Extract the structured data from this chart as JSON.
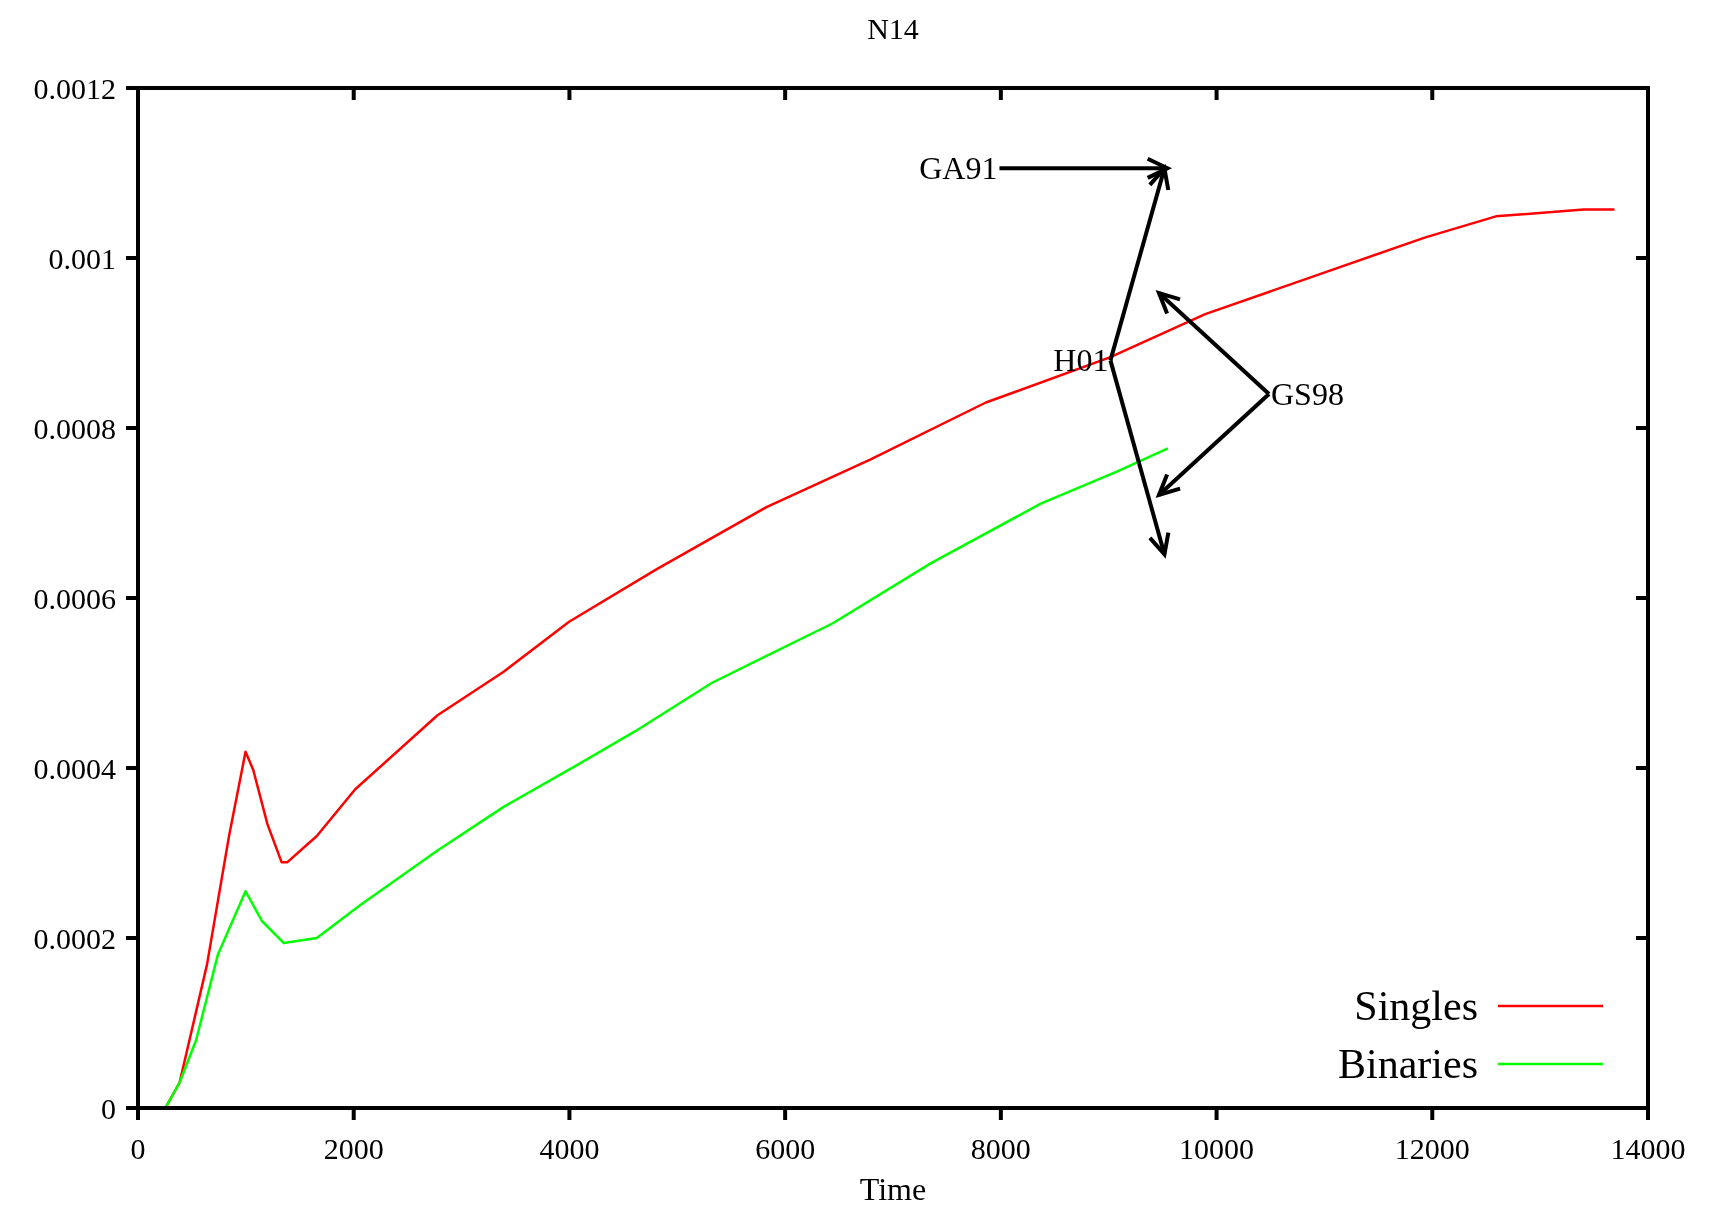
{
  "chart_data": {
    "type": "line",
    "title": "N14",
    "xlabel": "Time",
    "xlim": [
      0,
      14000
    ],
    "xticks": [
      0,
      2000,
      4000,
      6000,
      8000,
      10000,
      12000,
      14000
    ],
    "ylim": [
      0,
      0.0012
    ],
    "yticks": [
      0,
      0.0002,
      0.0004,
      0.0006,
      0.0008,
      0.001,
      0.0012
    ],
    "grid": false,
    "legend": "bottom right",
    "marker": "none",
    "line_style": "solid",
    "annotations": [
      "GA91",
      "H01",
      "GS98"
    ],
    "series": [
      {
        "name": "Singles",
        "color": "#ff0000",
        "x": [
          254,
          386,
          640,
          844,
          997,
          1068,
          1200,
          1332,
          1383,
          1658,
          2014,
          2777,
          3387,
          3997,
          4810,
          5827,
          6793,
          7861,
          9010,
          9895,
          10912,
          11929,
          12590,
          13404,
          13689
        ],
        "values": [
          0,
          3e-05,
          0.000169,
          0.00032,
          0.000419,
          0.000398,
          0.000334,
          0.000289,
          0.000289,
          0.00032,
          0.000375,
          0.000462,
          0.000513,
          0.000572,
          0.000634,
          0.000707,
          0.000763,
          0.00083,
          0.000883,
          0.000934,
          0.000979,
          0.001024,
          0.001049,
          0.001057,
          0.001057
        ]
      },
      {
        "name": "Binaries",
        "color": "#00ff00",
        "x": [
          254,
          386,
          539,
          742,
          997,
          1149,
          1352,
          1658,
          2065,
          2777,
          3387,
          3997,
          4607,
          5319,
          6438,
          7353,
          8370,
          9081,
          9549
        ],
        "values": [
          0,
          3e-05,
          8e-05,
          0.000181,
          0.000255,
          0.00022,
          0.000194,
          0.0002,
          0.000239,
          0.000303,
          0.000354,
          0.000398,
          0.000443,
          0.0005,
          0.00057,
          0.000641,
          0.000711,
          0.000749,
          0.000776
        ]
      }
    ]
  }
}
